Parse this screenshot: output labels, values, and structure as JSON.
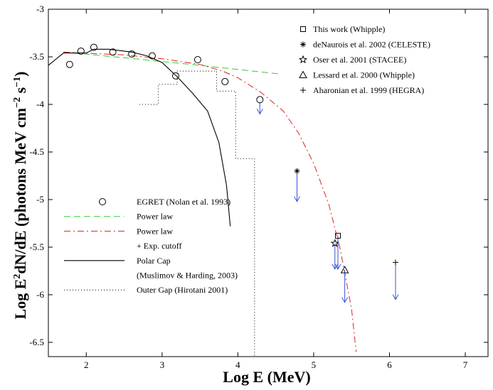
{
  "chart_data": {
    "type": "scatter",
    "xlabel": "Log E (MeV)",
    "ylabel_main": "Log E",
    "ylabel_sup1": "2",
    "ylabel_mid": "dN/dE (photons MeV cm",
    "ylabel_sup2": "−2",
    "ylabel_mid2": " s",
    "ylabel_sup3": "−1",
    "ylabel_end": ")",
    "xlim": [
      1.5,
      7.3
    ],
    "ylim": [
      -6.65,
      -3.0
    ],
    "xticks": [
      2,
      3,
      4,
      5,
      6,
      7
    ],
    "yticks": [
      -3,
      -3.5,
      -4,
      -4.5,
      -5,
      -5.5,
      -6,
      -6.5
    ],
    "xtick_labels": [
      "2",
      "3",
      "4",
      "5",
      "6",
      "7"
    ],
    "ytick_labels": [
      "-3",
      "-3.5",
      "-4",
      "-4.5",
      "-5",
      "-5.5",
      "-6",
      "-6.5"
    ],
    "grid": false,
    "colors": {
      "power_law": "#33cc33",
      "power_law_cutoff": "#dd2222",
      "polar_cap": "#000000",
      "outer_gap": "#000000",
      "upper_limit": "#3355dd"
    },
    "series": [
      {
        "name": "EGRET (Nolan et al. 1993)",
        "marker": "circle",
        "x": [
          1.78,
          1.93,
          2.1,
          2.35,
          2.6,
          2.87,
          3.18,
          3.47,
          3.83
        ],
        "y": [
          -3.58,
          -3.44,
          -3.4,
          -3.45,
          -3.47,
          -3.49,
          -3.7,
          -3.53,
          -3.76
        ]
      },
      {
        "name": "EGRET upper limit",
        "marker": "circle-arrow",
        "x": [
          4.29
        ],
        "y": [
          -3.95
        ],
        "arrow_to": [
          -4.1
        ]
      },
      {
        "name": "Power law",
        "style": "dashed-green",
        "x": [
          1.7,
          2.5,
          3.5,
          4.55
        ],
        "y": [
          -3.45,
          -3.51,
          -3.59,
          -3.68
        ]
      },
      {
        "name": "Power law + Exp. cutoff",
        "style": "dashdot-red",
        "x": [
          1.7,
          2.5,
          3.0,
          3.5,
          3.8,
          4.0,
          4.3,
          4.6,
          4.8,
          5.0,
          5.2,
          5.35,
          5.5,
          5.56
        ],
        "y": [
          -3.45,
          -3.48,
          -3.52,
          -3.58,
          -3.65,
          -3.72,
          -3.87,
          -4.07,
          -4.3,
          -4.62,
          -5.05,
          -5.52,
          -6.15,
          -6.6
        ]
      },
      {
        "name": "Polar Cap (Muslimov & Harding, 2003)",
        "style": "solid-black",
        "x": [
          1.5,
          1.7,
          2.0,
          2.1,
          2.3,
          2.6,
          2.8,
          3.0,
          3.2,
          3.4,
          3.6,
          3.75,
          3.85,
          3.9
        ],
        "y": [
          -3.59,
          -3.46,
          -3.46,
          -3.42,
          -3.42,
          -3.45,
          -3.49,
          -3.56,
          -3.71,
          -3.88,
          -4.07,
          -4.4,
          -4.85,
          -5.28
        ]
      },
      {
        "name": "Outer Gap (Hirotani 2001)",
        "style": "dotted-black",
        "x": [
          2.7,
          2.95,
          2.95,
          3.2,
          3.2,
          3.47,
          3.47,
          3.72,
          3.72,
          3.97,
          3.97,
          4.22,
          4.22
        ],
        "y": [
          -4.0,
          -4.0,
          -3.79,
          -3.79,
          -3.65,
          -3.65,
          -3.65,
          -3.65,
          -3.86,
          -3.86,
          -4.57,
          -4.57,
          -6.65
        ]
      },
      {
        "name": "This work (Whipple)",
        "marker": "square",
        "x": [
          5.32
        ],
        "y": [
          -5.38
        ],
        "arrow_to": [
          -5.73
        ]
      },
      {
        "name": "deNaurois et al. 2002 (CELESTE)",
        "marker": "asterisk",
        "x": [
          4.78
        ],
        "y": [
          -4.7
        ],
        "arrow_to": [
          -5.02
        ]
      },
      {
        "name": "Oser et al. 2001 (STACEE)",
        "marker": "star",
        "x": [
          5.28
        ],
        "y": [
          -5.46
        ],
        "arrow_to": [
          -5.73
        ]
      },
      {
        "name": "Lessard et al. 2000 (Whipple)",
        "marker": "triangle",
        "x": [
          5.41
        ],
        "y": [
          -5.74
        ],
        "arrow_to": [
          -6.08
        ]
      },
      {
        "name": "Aharonian et al. 1999 (HEGRA)",
        "marker": "plus",
        "x": [
          6.08
        ],
        "y": [
          -5.66
        ],
        "arrow_to": [
          -6.05
        ]
      }
    ],
    "legend_top": [
      {
        "marker": "square",
        "label": "This work (Whipple)"
      },
      {
        "marker": "asterisk",
        "label": "deNaurois et al. 2002 (CELESTE)"
      },
      {
        "marker": "star",
        "label": "Oser et al. 2001 (STACEE)"
      },
      {
        "marker": "triangle",
        "label": "Lessard et al. 2000 (Whipple)"
      },
      {
        "marker": "plus",
        "label": "Aharonian et al. 1999 (HEGRA)"
      }
    ],
    "legend_bottom": [
      {
        "style": "circle",
        "label": "EGRET (Nolan et al. 1993)"
      },
      {
        "style": "dashed-green",
        "label": "Power law"
      },
      {
        "style": "dashdot-red",
        "label": "Power law"
      },
      {
        "style": "none",
        "label": "+ Exp. cutoff"
      },
      {
        "style": "solid-black",
        "label": "Polar Cap"
      },
      {
        "style": "none",
        "label": "(Muslimov & Harding, 2003)"
      },
      {
        "style": "dotted-black",
        "label": "Outer Gap (Hirotani 2001)"
      }
    ]
  }
}
